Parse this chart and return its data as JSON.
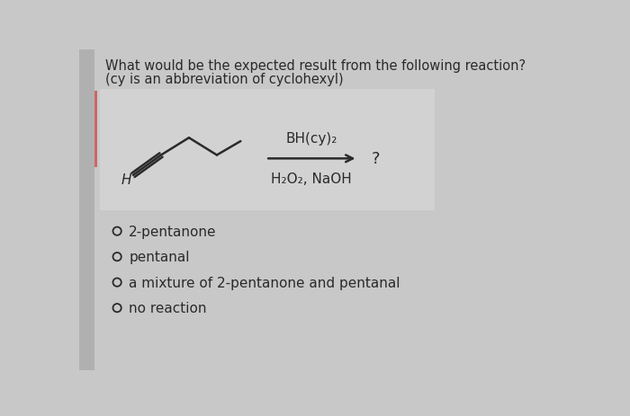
{
  "title_line1": "What would be the expected result from the following reaction?",
  "title_line2": "(cy is an abbreviation of cyclohexyl)",
  "reagent_above": "BH(cy)₂",
  "reagent_below": "H₂O₂, NaOH",
  "question_mark": "?",
  "label_H": "H",
  "options": [
    "2-pentanone",
    "pentanal",
    "a mixture of 2-pentanone and pentanal",
    "no reaction"
  ],
  "bg_color": "#c8c8c8",
  "reaction_box_color": "#d2d2d2",
  "text_color": "#2a2a2a",
  "left_bar_color": "#b0b0b0",
  "red_bar_color": "#cc6666"
}
